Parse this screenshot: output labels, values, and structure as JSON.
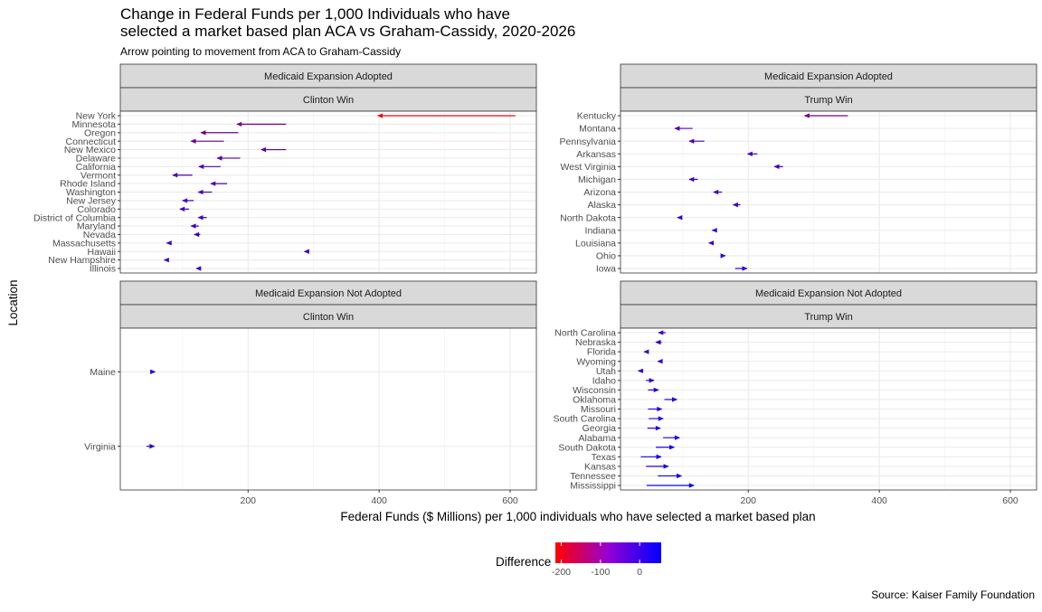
{
  "chart_data": {
    "type": "arrow",
    "title_lines": [
      "Change in Federal Funds per 1,000 Individuals who have",
      "selected a market based plan ACA vs Graham-Cassidy, 2020-2026"
    ],
    "subtitle": "Arrow pointing to movement from ACA to Graham-Cassidy",
    "xlabel": "Federal Funds ($ Millions) per 1,000 individuals who have selected a market based plan",
    "ylabel": "Location",
    "caption": "Source: Kaiser Family Foundation",
    "xlim": [
      5,
      640
    ],
    "xticks": [
      200,
      400,
      600
    ],
    "legend": {
      "title": "Difference",
      "range": [
        -215,
        55
      ],
      "ticks": [
        -200,
        -100,
        0
      ],
      "tick_labels": [
        "-200",
        "-100",
        "0"
      ],
      "colors": [
        "#FF0000",
        "#0000FF"
      ]
    },
    "panels": [
      {
        "id": "expansion-clinton",
        "strip_top": "Medicaid Expansion Adopted",
        "strip_bottom": "Clinton Win",
        "states": [
          {
            "name": "New York",
            "aca": 608,
            "gc": 398
          },
          {
            "name": "Minnesota",
            "aca": 258,
            "gc": 183
          },
          {
            "name": "Oregon",
            "aca": 185,
            "gc": 128
          },
          {
            "name": "Connecticut",
            "aca": 163,
            "gc": 113
          },
          {
            "name": "New Mexico",
            "aca": 258,
            "gc": 220
          },
          {
            "name": "Delaware",
            "aca": 188,
            "gc": 153
          },
          {
            "name": "California",
            "aca": 158,
            "gc": 125
          },
          {
            "name": "Vermont",
            "aca": 115,
            "gc": 85
          },
          {
            "name": "Rhode Island",
            "aca": 168,
            "gc": 143
          },
          {
            "name": "Washington",
            "aca": 145,
            "gc": 124
          },
          {
            "name": "New Jersey",
            "aca": 117,
            "gc": 100
          },
          {
            "name": "Colorado",
            "aca": 110,
            "gc": 96
          },
          {
            "name": "District of Columbia",
            "aca": 137,
            "gc": 124
          },
          {
            "name": "Maryland",
            "aca": 125,
            "gc": 113
          },
          {
            "name": "Nevada",
            "aca": 127,
            "gc": 118
          },
          {
            "name": "Massachusetts",
            "aca": 81,
            "gc": 76
          },
          {
            "name": "Hawaii",
            "aca": 291,
            "gc": 286
          },
          {
            "name": "New Hampshire",
            "aca": 77,
            "gc": 72
          },
          {
            "name": "Illinois",
            "aca": 124,
            "gc": 121
          }
        ]
      },
      {
        "id": "expansion-trump",
        "strip_top": "Medicaid Expansion Adopted",
        "strip_bottom": "Trump Win",
        "states": [
          {
            "name": "Kentucky",
            "aca": 352,
            "gc": 286
          },
          {
            "name": "Montana",
            "aca": 115,
            "gc": 88
          },
          {
            "name": "Pennsylvania",
            "aca": 133,
            "gc": 110
          },
          {
            "name": "Arkansas",
            "aca": 214,
            "gc": 199
          },
          {
            "name": "West Virginia",
            "aca": 253,
            "gc": 240
          },
          {
            "name": "Michigan",
            "aca": 123,
            "gc": 110
          },
          {
            "name": "Arizona",
            "aca": 160,
            "gc": 147
          },
          {
            "name": "Alaska",
            "aca": 188,
            "gc": 177
          },
          {
            "name": "North Dakota",
            "aca": 97,
            "gc": 92
          },
          {
            "name": "Indiana",
            "aca": 148,
            "gc": 145
          },
          {
            "name": "Louisiana",
            "aca": 143,
            "gc": 140
          },
          {
            "name": "Ohio",
            "aca": 160,
            "gc": 165
          },
          {
            "name": "Iowa",
            "aca": 180,
            "gc": 198
          }
        ]
      },
      {
        "id": "no-expansion-clinton",
        "strip_top": "Medicaid Expansion Not Adopted",
        "strip_bottom": "Clinton Win",
        "states": [
          {
            "name": "Maine",
            "aca": 53,
            "gc": 58
          },
          {
            "name": "Virginia",
            "aca": 45,
            "gc": 57
          }
        ]
      },
      {
        "id": "no-expansion-trump",
        "strip_top": "Medicaid Expansion Not Adopted",
        "strip_bottom": "Trump Win",
        "states": [
          {
            "name": "North Carolina",
            "aca": 74,
            "gc": 63
          },
          {
            "name": "Nebraska",
            "aca": 68,
            "gc": 59
          },
          {
            "name": "Florida",
            "aca": 46,
            "gc": 41
          },
          {
            "name": "Wyoming",
            "aca": 64,
            "gc": 62
          },
          {
            "name": "Utah",
            "aca": 40,
            "gc": 32
          },
          {
            "name": "Idaho",
            "aca": 44,
            "gc": 56
          },
          {
            "name": "Wisconsin",
            "aca": 47,
            "gc": 63
          },
          {
            "name": "Oklahoma",
            "aca": 72,
            "gc": 91
          },
          {
            "name": "Missouri",
            "aca": 47,
            "gc": 68
          },
          {
            "name": "South Carolina",
            "aca": 48,
            "gc": 70
          },
          {
            "name": "Georgia",
            "aca": 46,
            "gc": 66
          },
          {
            "name": "Alabama",
            "aca": 70,
            "gc": 95
          },
          {
            "name": "South Dakota",
            "aca": 59,
            "gc": 87
          },
          {
            "name": "Texas",
            "aca": 36,
            "gc": 67
          },
          {
            "name": "Kansas",
            "aca": 44,
            "gc": 78
          },
          {
            "name": "Tennessee",
            "aca": 62,
            "gc": 98
          },
          {
            "name": "Mississippi",
            "aca": 45,
            "gc": 117
          }
        ]
      }
    ]
  }
}
